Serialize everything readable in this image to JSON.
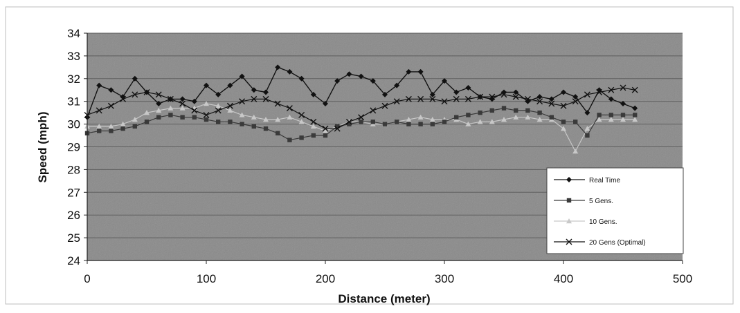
{
  "chart_data": {
    "type": "line",
    "title": "",
    "xlabel": "Distance (meter)",
    "ylabel": "Speed (mph)",
    "xlim": [
      0,
      500
    ],
    "ylim": [
      24,
      34
    ],
    "x_ticks": [
      "0",
      "100",
      "200",
      "300",
      "400",
      "500"
    ],
    "y_ticks": [
      "24",
      "25",
      "26",
      "27",
      "28",
      "29",
      "30",
      "31",
      "32",
      "33",
      "34"
    ],
    "grid": true,
    "legend_position": "bottom-right",
    "plot_background": "#8a8a8a",
    "x": [
      0,
      10,
      20,
      30,
      40,
      50,
      60,
      70,
      80,
      90,
      100,
      110,
      120,
      130,
      140,
      150,
      160,
      170,
      180,
      190,
      200,
      210,
      220,
      230,
      240,
      250,
      260,
      270,
      280,
      290,
      300,
      310,
      320,
      330,
      340,
      350,
      360,
      370,
      380,
      390,
      400,
      410,
      420,
      430,
      440,
      450,
      460
    ],
    "series": [
      {
        "name": "Real Time",
        "marker": "diamond",
        "color": "#111111",
        "values": [
          30.3,
          31.7,
          31.5,
          31.2,
          32.0,
          31.4,
          30.9,
          31.1,
          31.1,
          31.0,
          31.7,
          31.3,
          31.7,
          32.1,
          31.5,
          31.4,
          32.5,
          32.3,
          32.0,
          31.3,
          30.9,
          31.9,
          32.2,
          32.1,
          31.9,
          31.3,
          31.7,
          32.3,
          32.3,
          31.3,
          31.9,
          31.4,
          31.6,
          31.2,
          31.1,
          31.4,
          31.4,
          31.0,
          31.2,
          31.1,
          31.4,
          31.2,
          30.5,
          31.5,
          31.1,
          30.9,
          30.7
        ]
      },
      {
        "name": "5 Gens.",
        "marker": "square",
        "color": "#3a3a3a",
        "values": [
          29.6,
          29.7,
          29.7,
          29.8,
          29.9,
          30.1,
          30.3,
          30.4,
          30.3,
          30.3,
          30.2,
          30.1,
          30.1,
          30.0,
          29.9,
          29.8,
          29.6,
          29.3,
          29.4,
          29.5,
          29.5,
          29.9,
          30.0,
          30.1,
          30.1,
          30.0,
          30.1,
          30.0,
          30.0,
          30.0,
          30.1,
          30.3,
          30.4,
          30.5,
          30.6,
          30.7,
          30.6,
          30.6,
          30.5,
          30.3,
          30.1,
          30.1,
          29.5,
          30.4,
          30.4,
          30.4,
          30.4
        ]
      },
      {
        "name": "10 Gens.",
        "marker": "triangle",
        "color": "#c8c8c8",
        "values": [
          29.9,
          29.9,
          29.9,
          30.0,
          30.2,
          30.5,
          30.6,
          30.7,
          30.7,
          30.7,
          30.9,
          30.8,
          30.6,
          30.4,
          30.3,
          30.2,
          30.2,
          30.3,
          30.1,
          29.9,
          29.7,
          29.9,
          30.1,
          30.1,
          30.0,
          30.0,
          30.1,
          30.2,
          30.3,
          30.2,
          30.2,
          30.2,
          30.0,
          30.1,
          30.1,
          30.2,
          30.3,
          30.3,
          30.2,
          30.2,
          29.8,
          28.8,
          29.8,
          30.2,
          30.2,
          30.2,
          30.2
        ]
      },
      {
        "name": "20 Gens (Optimal)",
        "marker": "x",
        "color": "#111111",
        "values": [
          30.4,
          30.6,
          30.8,
          31.1,
          31.3,
          31.4,
          31.3,
          31.1,
          30.9,
          30.6,
          30.4,
          30.6,
          30.8,
          31.0,
          31.1,
          31.1,
          30.9,
          30.7,
          30.4,
          30.1,
          29.8,
          29.8,
          30.1,
          30.3,
          30.6,
          30.8,
          31.0,
          31.1,
          31.1,
          31.1,
          31.0,
          31.1,
          31.1,
          31.2,
          31.2,
          31.3,
          31.2,
          31.1,
          31.0,
          30.9,
          30.8,
          31.0,
          31.3,
          31.4,
          31.5,
          31.6,
          31.5
        ]
      }
    ]
  }
}
